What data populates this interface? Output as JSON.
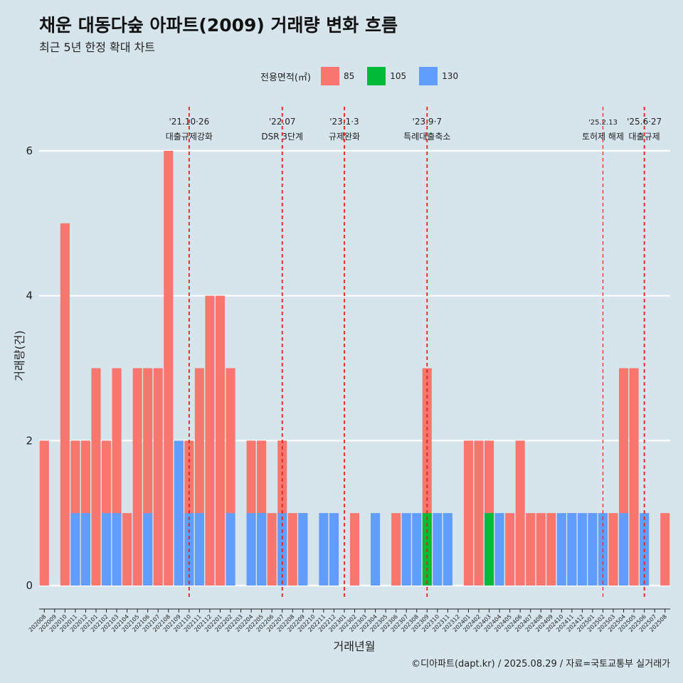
{
  "header": {
    "title": "채운 대동다숲 아파트(2009) 거래량 변화 흐름",
    "subtitle": "최근 5년 한정 확대 차트"
  },
  "legend": {
    "title": "전용면적(㎡)",
    "items": [
      {
        "label": "85",
        "color": "#f8766d"
      },
      {
        "label": "105",
        "color": "#00ba38"
      },
      {
        "label": "130",
        "color": "#619cff"
      }
    ]
  },
  "caption": "©디아파트(dapt.kr) / 2025.08.29 / 자료=국토교통부 실거래가",
  "chart_data": {
    "type": "bar",
    "stacked": false,
    "xlabel": "거래년월",
    "ylabel": "거래량(건)",
    "ylim": [
      0,
      6
    ],
    "yticks": [
      0,
      2,
      4,
      6
    ],
    "grid": true,
    "legend_position": "top",
    "categories": [
      "202008",
      "202009",
      "202010",
      "202011",
      "202012",
      "202101",
      "202102",
      "202103",
      "202104",
      "202105",
      "202106",
      "202107",
      "202108",
      "202109",
      "202110",
      "202111",
      "202112",
      "202201",
      "202202",
      "202203",
      "202204",
      "202205",
      "202206",
      "202207",
      "202208",
      "202209",
      "202210",
      "202211",
      "202212",
      "202301",
      "202302",
      "202303",
      "202304",
      "202305",
      "202306",
      "202307",
      "202308",
      "202309",
      "202310",
      "202311",
      "202312",
      "202401",
      "202402",
      "202403",
      "202404",
      "202405",
      "202406",
      "202407",
      "202408",
      "202409",
      "202410",
      "202411",
      "202412",
      "202501",
      "202502",
      "202503",
      "202504",
      "202505",
      "202506",
      "202507",
      "202508"
    ],
    "series": [
      {
        "name": "85",
        "color": "#f8766d",
        "values": [
          2,
          0,
          5,
          2,
          2,
          3,
          2,
          3,
          1,
          3,
          3,
          3,
          6,
          0,
          2,
          3,
          4,
          4,
          3,
          0,
          2,
          2,
          1,
          2,
          1,
          1,
          0,
          0,
          0,
          0,
          1,
          0,
          0,
          0,
          1,
          0,
          0,
          3,
          0,
          0,
          0,
          2,
          2,
          2,
          0,
          1,
          2,
          1,
          1,
          1,
          0,
          1,
          0,
          1,
          0,
          1,
          3,
          3,
          0,
          0,
          1
        ]
      },
      {
        "name": "105",
        "color": "#00ba38",
        "values": [
          0,
          0,
          0,
          0,
          0,
          0,
          0,
          0,
          0,
          0,
          0,
          0,
          0,
          0,
          0,
          0,
          0,
          0,
          0,
          0,
          0,
          1,
          0,
          0,
          0,
          0,
          0,
          0,
          0,
          0,
          0,
          0,
          0,
          0,
          0,
          0,
          0,
          1,
          0,
          0,
          0,
          0,
          0,
          1,
          0,
          0,
          0,
          0,
          0,
          0,
          0,
          0,
          0,
          0,
          0,
          0,
          0,
          0,
          0,
          0,
          0
        ]
      },
      {
        "name": "130",
        "color": "#619cff",
        "values": [
          0,
          0,
          0,
          1,
          1,
          0,
          1,
          1,
          0,
          0,
          1,
          0,
          0,
          2,
          1,
          1,
          0,
          0,
          1,
          0,
          1,
          1,
          0,
          1,
          0,
          1,
          0,
          1,
          1,
          0,
          0,
          0,
          1,
          0,
          0,
          1,
          1,
          0,
          1,
          1,
          0,
          0,
          0,
          0,
          1,
          0,
          0,
          0,
          0,
          0,
          1,
          1,
          1,
          1,
          1,
          0,
          1,
          0,
          1,
          0,
          0
        ]
      }
    ],
    "events": [
      {
        "at": "202110",
        "label": "'21.10·26",
        "label2": "대출규제강화"
      },
      {
        "at": "202207",
        "label": "'22.07",
        "label2": "DSR 3단계"
      },
      {
        "at": "202301",
        "label": "'23.1·3",
        "label2": "규제완화"
      },
      {
        "at": "202309",
        "label": "'23.9·7",
        "label2": "특례대출축소"
      },
      {
        "at": "202502",
        "label": "'25.2.13",
        "label2": "토허제 해제"
      },
      {
        "at": "202506",
        "label": "'25.6·27",
        "label2": "대출규제"
      }
    ]
  }
}
